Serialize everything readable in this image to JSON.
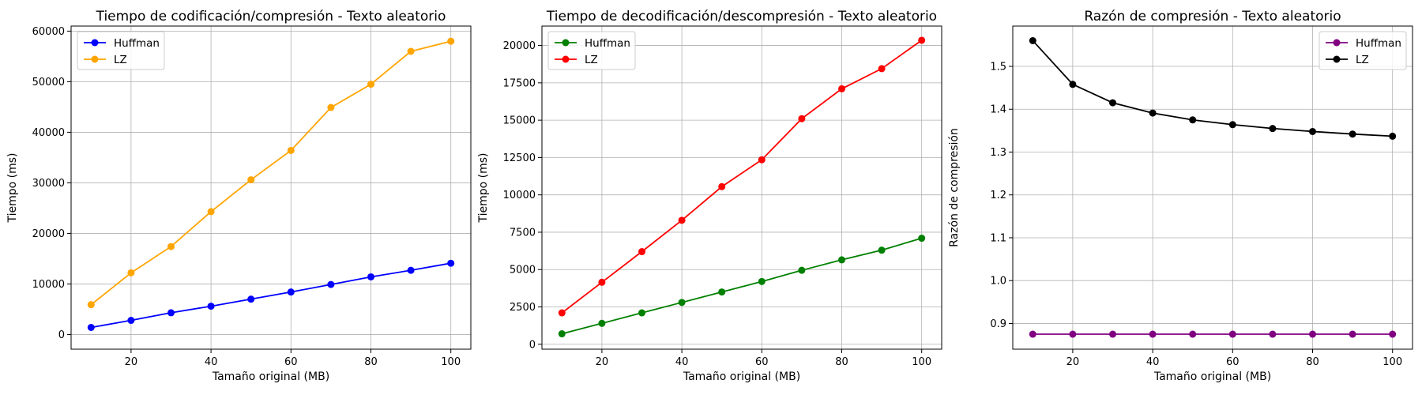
{
  "chart_data": [
    {
      "type": "line",
      "title": "Tiempo de codificación/compresión - Texto aleatorio",
      "xlabel": "Tamaño original (MB)",
      "ylabel": "Tiempo (ms)",
      "x": [
        10,
        20,
        30,
        40,
        50,
        60,
        70,
        80,
        90,
        100
      ],
      "xlim": [
        5,
        105
      ],
      "ylim": [
        -2900,
        61000
      ],
      "xticks": [
        20,
        40,
        60,
        80,
        100
      ],
      "yticks": [
        0,
        10000,
        20000,
        30000,
        40000,
        50000,
        60000
      ],
      "ytick_labels": [
        "0",
        "10000",
        "20000",
        "30000",
        "40000",
        "50000",
        "60000"
      ],
      "grid": true,
      "legend_position": "upper left",
      "series": [
        {
          "name": "Huffman",
          "color": "#0000ff",
          "values": [
            1400,
            2800,
            4300,
            5600,
            7000,
            8400,
            9900,
            11400,
            12700,
            14100
          ]
        },
        {
          "name": "LZ",
          "color": "#ffa500",
          "values": [
            5900,
            12200,
            17400,
            24300,
            30600,
            36400,
            44900,
            49500,
            56000,
            58000
          ]
        }
      ]
    },
    {
      "type": "line",
      "title": "Tiempo de decodificación/descompresión - Texto aleatorio",
      "xlabel": "Tamaño original (MB)",
      "ylabel": "Tiempo (ms)",
      "x": [
        10,
        20,
        30,
        40,
        50,
        60,
        70,
        80,
        90,
        100
      ],
      "xlim": [
        5,
        105
      ],
      "ylim": [
        -330,
        21300
      ],
      "xticks": [
        20,
        40,
        60,
        80,
        100
      ],
      "yticks": [
        0,
        2500,
        5000,
        7500,
        10000,
        12500,
        15000,
        17500,
        20000
      ],
      "ytick_labels": [
        "0",
        "2500",
        "5000",
        "7500",
        "10000",
        "12500",
        "15000",
        "17500",
        "20000"
      ],
      "grid": true,
      "legend_position": "upper left",
      "series": [
        {
          "name": "Huffman",
          "color": "#008000",
          "values": [
            700,
            1400,
            2100,
            2800,
            3500,
            4200,
            4950,
            5650,
            6300,
            7100
          ]
        },
        {
          "name": "LZ",
          "color": "#ff0000",
          "values": [
            2100,
            4150,
            6200,
            8300,
            10550,
            12350,
            15100,
            17100,
            18450,
            20350
          ]
        }
      ]
    },
    {
      "type": "line",
      "title": "Razón de compresión - Texto aleatorio",
      "xlabel": "Tamaño original (MB)",
      "ylabel": "Razón de compresión",
      "x": [
        10,
        20,
        30,
        40,
        50,
        60,
        70,
        80,
        90,
        100
      ],
      "xlim": [
        5,
        105
      ],
      "ylim": [
        0.84,
        1.594
      ],
      "xticks": [
        20,
        40,
        60,
        80,
        100
      ],
      "yticks": [
        0.9,
        1.0,
        1.1,
        1.2,
        1.3,
        1.4,
        1.5
      ],
      "ytick_labels": [
        "0.9",
        "1.0",
        "1.1",
        "1.2",
        "1.3",
        "1.4",
        "1.5"
      ],
      "grid": true,
      "legend_position": "upper right",
      "series": [
        {
          "name": "Huffman",
          "color": "#800080",
          "values": [
            0.875,
            0.875,
            0.875,
            0.875,
            0.875,
            0.875,
            0.875,
            0.875,
            0.875,
            0.875
          ]
        },
        {
          "name": "LZ",
          "color": "#000000",
          "values": [
            1.56,
            1.458,
            1.415,
            1.391,
            1.375,
            1.364,
            1.355,
            1.348,
            1.342,
            1.337
          ]
        }
      ]
    }
  ]
}
